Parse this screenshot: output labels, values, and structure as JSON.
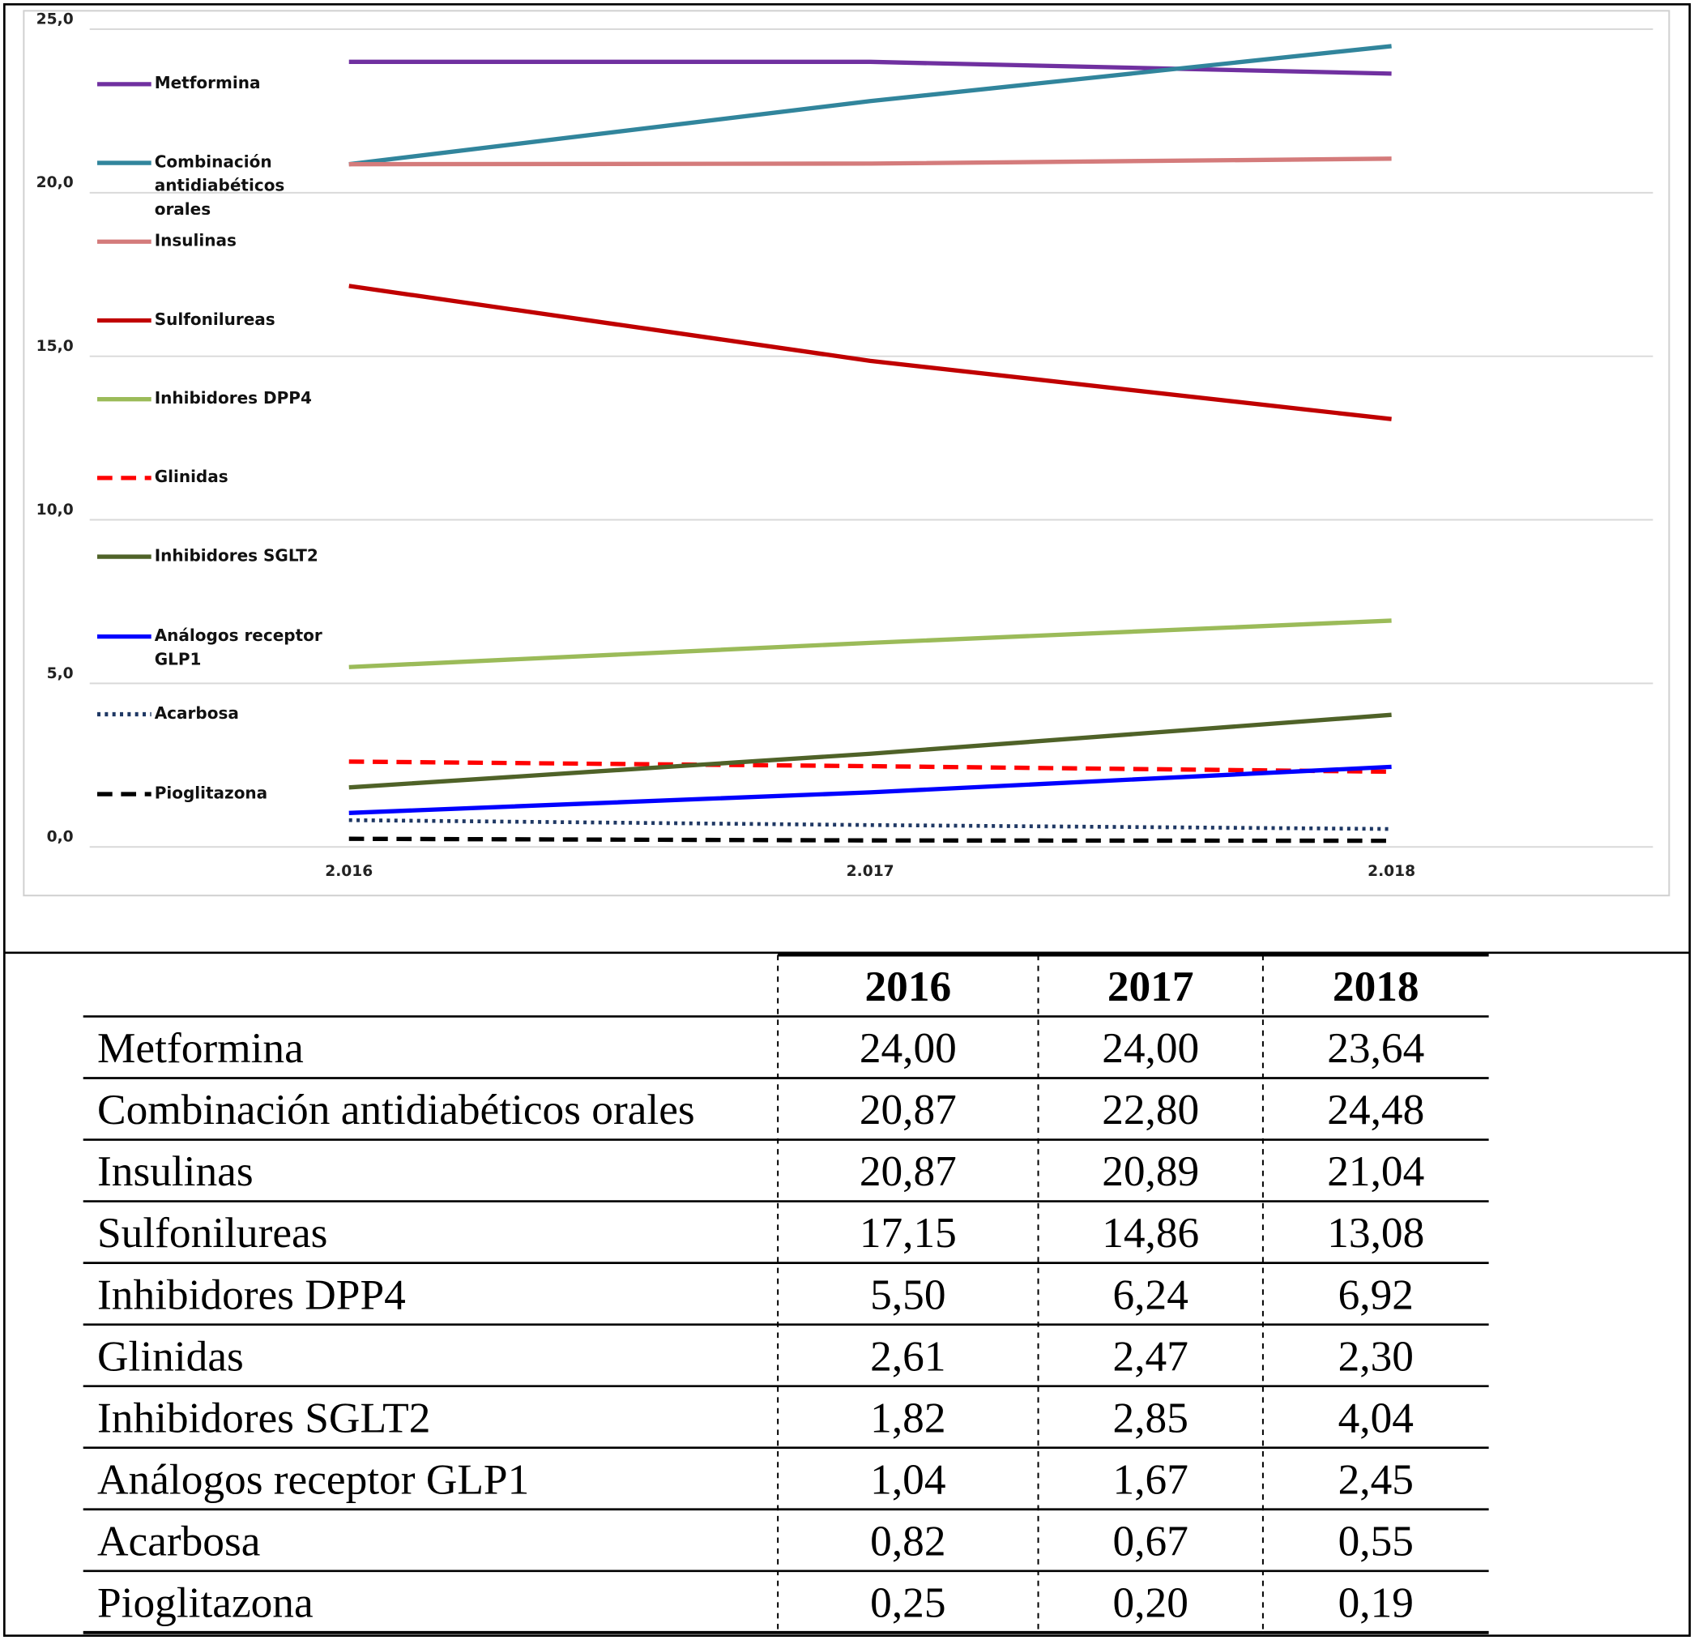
{
  "chart_data": {
    "type": "line",
    "categories": [
      "2.016",
      "2.017",
      "2.018"
    ],
    "ylim": [
      0,
      25
    ],
    "yticks": [
      {
        "value": 0,
        "label": "0,0"
      },
      {
        "value": 5,
        "label": "5,0"
      },
      {
        "value": 10,
        "label": "10,0"
      },
      {
        "value": 15,
        "label": "15,0"
      },
      {
        "value": 20,
        "label": "20,0"
      },
      {
        "value": 25,
        "label": "25,0"
      }
    ],
    "grid": true,
    "legend": "left",
    "series": [
      {
        "name": "Metformina",
        "color": "#7030a0",
        "style": "solid",
        "values": [
          24.0,
          24.0,
          23.64
        ]
      },
      {
        "name": "Combinación antidiabéticos orales",
        "color": "#31859c",
        "style": "solid",
        "values": [
          20.87,
          22.8,
          24.48
        ]
      },
      {
        "name": "Insulinas",
        "color": "#d47b7b",
        "style": "solid",
        "values": [
          20.87,
          20.89,
          21.04
        ]
      },
      {
        "name": "Sulfonilureas",
        "color": "#c00000",
        "style": "solid",
        "values": [
          17.15,
          14.86,
          13.08
        ]
      },
      {
        "name": "Inhibidores DPP4",
        "color": "#9bbb59",
        "style": "solid",
        "values": [
          5.5,
          6.24,
          6.92
        ]
      },
      {
        "name": "Glinidas",
        "color": "#ff0000",
        "style": "dashed",
        "values": [
          2.61,
          2.47,
          2.3
        ]
      },
      {
        "name": "Inhibidores SGLT2",
        "color": "#4f6228",
        "style": "solid",
        "values": [
          1.82,
          2.85,
          4.04
        ]
      },
      {
        "name": "Análogos receptor GLP1",
        "color": "#0000ff",
        "style": "solid",
        "values": [
          1.04,
          1.67,
          2.45
        ]
      },
      {
        "name": "Acarbosa",
        "color": "#1f3864",
        "style": "dotted",
        "values": [
          0.82,
          0.67,
          0.55
        ]
      },
      {
        "name": "Pioglitazona",
        "color": "#000000",
        "style": "dashed",
        "values": [
          0.25,
          0.2,
          0.19
        ]
      }
    ]
  },
  "table": {
    "header": [
      "2016",
      "2017",
      "2018"
    ],
    "rows": [
      [
        "Metformina",
        "24,00",
        "24,00",
        "23,64"
      ],
      [
        "Combinación antidiabéticos orales",
        "20,87",
        "22,80",
        "24,48"
      ],
      [
        "Insulinas",
        "20,87",
        "20,89",
        "21,04"
      ],
      [
        "Sulfonilureas",
        "17,15",
        "14,86",
        "13,08"
      ],
      [
        "Inhibidores DPP4",
        "5,50",
        "6,24",
        "6,92"
      ],
      [
        "Glinidas",
        "2,61",
        "2,47",
        "2,30"
      ],
      [
        "Inhibidores SGLT2",
        "1,82",
        "2,85",
        "4,04"
      ],
      [
        "Análogos receptor GLP1",
        "1,04",
        "1,67",
        "2,45"
      ],
      [
        "Acarbosa",
        "0,82",
        "0,67",
        "0,55"
      ],
      [
        "Pioglitazona",
        "0,25",
        "0,20",
        "0,19"
      ]
    ]
  }
}
